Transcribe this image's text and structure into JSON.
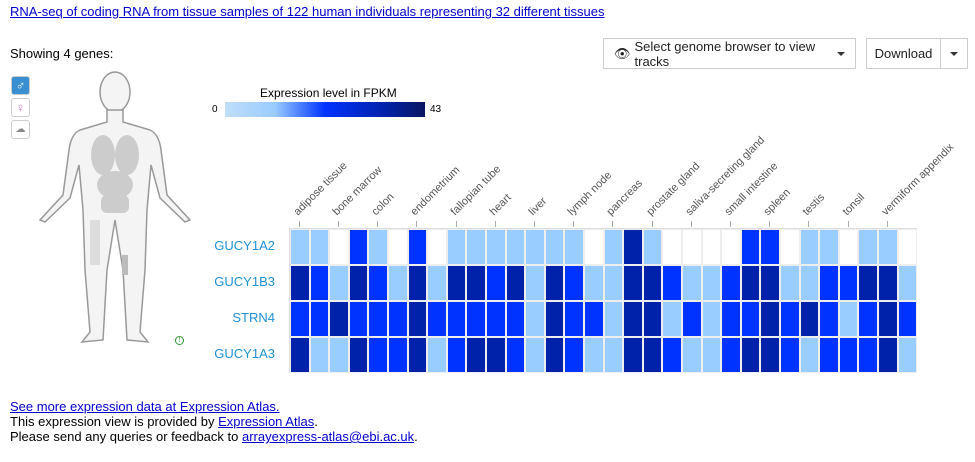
{
  "title_link": "RNA-seq of coding RNA from tissue samples of 122 human individuals representing 32 different tissues",
  "showing": "Showing 4 genes:",
  "toolbar": {
    "genome_browser": "Select genome browser to view tracks",
    "download": "Download"
  },
  "anatomogram": {
    "icons": [
      "male-icon",
      "female-icon",
      "brain-icon"
    ]
  },
  "legend": {
    "title": "Expression level in FPKM",
    "min": "0",
    "max": "43"
  },
  "colors": {
    "none": "#ffffff",
    "low": "#99ccff",
    "medium": "#0033ff",
    "high": "#0022aa"
  },
  "heatmap": {
    "column_labels": [
      "adipose tissue",
      "bone marrow",
      "colon",
      "endometrium",
      "fallopian tube",
      "heart",
      "liver",
      "lymph node",
      "pancreas",
      "prostate gland",
      "saliva-secreting gland",
      "small intestine",
      "spleen",
      "testis",
      "tonsil",
      "vermiform appendix"
    ],
    "genes": [
      "GUCY1A2",
      "GUCY1B3",
      "STRN4",
      "GUCY1A3"
    ],
    "levels_legend": "0=below cutoff,1=low,2=medium,3=high",
    "levels": [
      [
        1,
        1,
        0,
        2,
        1,
        0,
        2,
        0,
        1,
        1,
        1,
        1,
        1,
        1,
        1,
        0,
        1,
        3,
        1,
        0,
        0,
        0,
        0,
        2,
        2,
        0,
        1,
        1,
        0,
        1,
        1,
        0
      ],
      [
        3,
        2,
        1,
        3,
        2,
        1,
        3,
        1,
        3,
        3,
        2,
        3,
        1,
        3,
        2,
        1,
        1,
        3,
        3,
        2,
        1,
        1,
        2,
        3,
        3,
        1,
        1,
        2,
        2,
        3,
        3,
        1
      ],
      [
        2,
        2,
        3,
        2,
        2,
        2,
        3,
        2,
        2,
        2,
        2,
        2,
        1,
        3,
        2,
        2,
        1,
        3,
        3,
        1,
        2,
        1,
        2,
        2,
        3,
        2,
        3,
        2,
        1,
        2,
        3,
        2
      ],
      [
        3,
        1,
        1,
        3,
        2,
        2,
        3,
        1,
        2,
        3,
        3,
        2,
        1,
        3,
        2,
        1,
        1,
        3,
        3,
        2,
        1,
        1,
        2,
        3,
        3,
        2,
        1,
        2,
        2,
        2,
        3,
        1
      ]
    ]
  },
  "footer": {
    "more_link": "See more expression data at Expression Atlas.",
    "provided_prefix": "This expression view is provided by ",
    "provided_link": "Expression Atlas",
    "provided_suffix": ".",
    "feedback_prefix": "Please send any queries or feedback to ",
    "feedback_link": "arrayexpress-atlas@ebi.ac.uk",
    "feedback_suffix": "."
  }
}
